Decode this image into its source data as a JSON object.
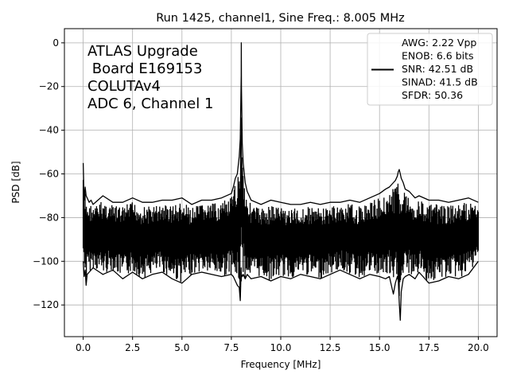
{
  "chart_data": {
    "type": "line",
    "title": "Run 1425, channel1, Sine Freq.: 8.005 MHz",
    "xlabel": "Frequency [MHz]",
    "ylabel": "PSD [dB]",
    "xlim": [
      -0.95,
      20.95
    ],
    "ylim": [
      -134.5,
      6.5
    ],
    "xticks": [
      0,
      2.5,
      5,
      7.5,
      10,
      12.5,
      15,
      17.5,
      20
    ],
    "xtick_labels": [
      "0.0",
      "2.5",
      "5.0",
      "7.5",
      "10.0",
      "12.5",
      "15.0",
      "17.5",
      "20.0"
    ],
    "yticks": [
      0,
      -20,
      -40,
      -60,
      -80,
      -100,
      -120
    ],
    "ytick_labels": [
      "0",
      "−20",
      "−40",
      "−60",
      "−80",
      "−100",
      "−120"
    ],
    "grid": true,
    "legend_position": "top-right",
    "line_color": "#000000",
    "annotation_lines": [
      "ATLAS Upgrade",
      " Board E169153",
      "COLUTAv4",
      "ADC 6, Channel 1"
    ],
    "legend_lines": [
      "AWG: 2.22 Vpp",
      "ENOB: 6.6 bits",
      "SNR: 42.51 dB",
      "SINAD: 41.5 dB",
      "SFDR: 50.36"
    ],
    "series": [
      {
        "x": [
          0.0,
          0.05,
          0.1,
          0.15,
          0.2,
          0.3,
          0.4,
          0.5,
          1.0,
          1.5,
          2.0,
          2.5,
          3.0,
          3.5,
          4.0,
          4.5,
          5.0,
          5.5,
          6.0,
          6.5,
          7.0,
          7.5,
          7.6,
          7.7,
          7.8,
          7.9,
          7.95,
          8.0,
          8.005,
          8.01,
          8.05,
          8.1,
          8.2,
          8.3,
          8.4,
          8.5,
          9.0,
          9.5,
          10.0,
          10.5,
          11.0,
          11.5,
          12.0,
          12.5,
          13.0,
          13.5,
          14.0,
          14.5,
          15.0,
          15.3,
          15.5,
          15.7,
          15.8,
          15.9,
          15.95,
          16.0,
          16.05,
          16.1,
          16.2,
          16.3,
          16.5,
          16.8,
          17.0,
          17.5,
          18.0,
          18.5,
          19.0,
          19.5,
          20.0
        ],
        "y": [
          -55,
          -72,
          -66,
          -70,
          -71,
          -73,
          -72,
          -74,
          -70,
          -73,
          -73,
          -71,
          -73,
          -73,
          -72,
          -72,
          -71,
          -74,
          -72,
          -72,
          -71,
          -69,
          -66,
          -62,
          -60,
          -52,
          -44,
          -15,
          0,
          -20,
          -46,
          -55,
          -64,
          -68,
          -70,
          -72,
          -74,
          -72,
          -73,
          -74,
          -74,
          -73,
          -74,
          -73,
          -73,
          -72,
          -73,
          -71,
          -69,
          -67,
          -66,
          -64,
          -63,
          -61,
          -59,
          -58,
          -60,
          -62,
          -64,
          -67,
          -68,
          -71,
          -70,
          -72,
          -72,
          -73,
          -72,
          -71,
          -73
        ]
      },
      {
        "x": [
          0.0,
          0.05,
          0.1,
          0.15,
          0.2,
          0.3,
          0.4,
          0.5,
          1.0,
          1.5,
          2.0,
          2.5,
          3.0,
          3.5,
          4.0,
          4.5,
          5.0,
          5.5,
          6.0,
          6.5,
          7.0,
          7.5,
          7.6,
          7.7,
          7.8,
          7.9,
          7.95,
          8.0,
          8.005,
          8.01,
          8.05,
          8.1,
          8.2,
          8.3,
          8.4,
          8.5,
          9.0,
          9.5,
          10.0,
          10.5,
          11.0,
          11.5,
          12.0,
          12.5,
          13.0,
          13.5,
          14.0,
          14.5,
          15.0,
          15.3,
          15.5,
          15.7,
          15.8,
          15.9,
          15.95,
          16.0,
          16.05,
          16.1,
          16.2,
          16.3,
          16.5,
          16.8,
          17.0,
          17.5,
          18.0,
          18.5,
          19.0,
          19.5,
          20.0
        ],
        "y": [
          -100,
          -107,
          -104,
          -111,
          -106,
          -105,
          -104,
          -103,
          -106,
          -104,
          -108,
          -105,
          -108,
          -106,
          -105,
          -108,
          -110,
          -106,
          -105,
          -106,
          -107,
          -106,
          -107,
          -109,
          -111,
          -112,
          -118,
          -103,
          -109,
          -106,
          -107,
          -106,
          -108,
          -106,
          -107,
          -108,
          -107,
          -109,
          -107,
          -108,
          -106,
          -107,
          -108,
          -106,
          -104,
          -106,
          -108,
          -106,
          -107,
          -108,
          -107,
          -115,
          -110,
          -107,
          -109,
          -119,
          -127,
          -114,
          -108,
          -107,
          -106,
          -108,
          -105,
          -110,
          -109,
          -107,
          -108,
          -106,
          -100
        ]
      }
    ]
  }
}
